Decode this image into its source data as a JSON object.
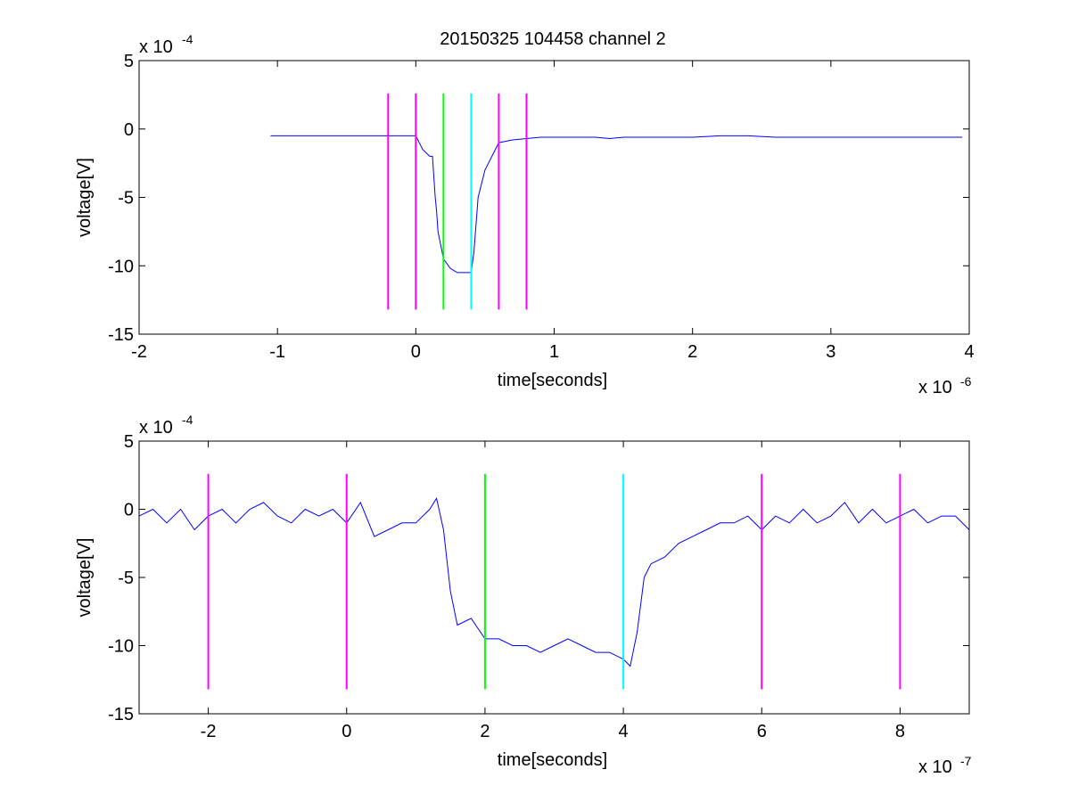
{
  "figure": {
    "title": "20150325 104458 channel 2"
  },
  "colors": {
    "signal": "#0000ff",
    "magenta": "#ff00ff",
    "green": "#00ff00",
    "cyan": "#00ffff",
    "axis": "#000000"
  },
  "chart_data": [
    {
      "type": "line",
      "title": "20150325 104458 channel 2",
      "xlabel": "time[seconds]",
      "ylabel": "voltage[V]",
      "x_exponent_label": "x 10",
      "x_exponent_power": "-6",
      "y_exponent_label": "x 10",
      "y_exponent_power": "-4",
      "xlim": [
        -2,
        4
      ],
      "ylim": [
        -15,
        5
      ],
      "xticks": [
        -2,
        -1,
        0,
        1,
        2,
        3,
        4
      ],
      "xtick_labels": [
        "-2",
        "-1",
        "0",
        "1",
        "2",
        "3",
        "4"
      ],
      "yticks": [
        5,
        0,
        -5,
        -10,
        -15
      ],
      "ytick_labels": [
        "5",
        "0",
        "-5",
        "-10",
        "-15"
      ],
      "grid": false,
      "series": [
        {
          "color": "#0000ff",
          "x": [
            -1.05,
            -0.9,
            -0.8,
            -0.7,
            -0.6,
            -0.5,
            -0.4,
            -0.3,
            -0.2,
            -0.1,
            0.0,
            0.05,
            0.1,
            0.12,
            0.14,
            0.15,
            0.16,
            0.18,
            0.2,
            0.25,
            0.3,
            0.35,
            0.4,
            0.42,
            0.45,
            0.5,
            0.55,
            0.6,
            0.7,
            0.8,
            0.9,
            1.0,
            1.1,
            1.2,
            1.3,
            1.4,
            1.5,
            1.6,
            1.8,
            2.0,
            2.2,
            2.4,
            2.6,
            2.8,
            3.0,
            3.2,
            3.4,
            3.6,
            3.8,
            3.95
          ],
          "y": [
            -0.5,
            -0.5,
            -0.5,
            -0.5,
            -0.5,
            -0.5,
            -0.5,
            -0.5,
            -0.5,
            -0.5,
            -0.5,
            -1.5,
            -2.0,
            -2.0,
            -5.0,
            -6.0,
            -7.5,
            -8.5,
            -9.5,
            -10.2,
            -10.5,
            -10.5,
            -10.5,
            -9.0,
            -5.0,
            -3.0,
            -2.0,
            -1.0,
            -0.8,
            -0.7,
            -0.6,
            -0.6,
            -0.6,
            -0.6,
            -0.6,
            -0.7,
            -0.6,
            -0.6,
            -0.6,
            -0.6,
            -0.5,
            -0.5,
            -0.6,
            -0.6,
            -0.6,
            -0.6,
            -0.6,
            -0.6,
            -0.6,
            -0.6
          ]
        }
      ],
      "vlines": [
        {
          "x": -0.2,
          "color": "#ff00ff"
        },
        {
          "x": 0.0,
          "color": "#ff00ff"
        },
        {
          "x": 0.2,
          "color": "#00ff00"
        },
        {
          "x": 0.4,
          "color": "#00ffff"
        },
        {
          "x": 0.6,
          "color": "#ff00ff"
        },
        {
          "x": 0.8,
          "color": "#ff00ff"
        }
      ],
      "vline_range": [
        -13.2,
        2.6
      ]
    },
    {
      "type": "line",
      "title": "",
      "xlabel": "time[seconds]",
      "ylabel": "voltage[V]",
      "x_exponent_label": "x 10",
      "x_exponent_power": "-7",
      "y_exponent_label": "x 10",
      "y_exponent_power": "-4",
      "xlim": [
        -3,
        9
      ],
      "ylim": [
        -15,
        5
      ],
      "xticks": [
        -2,
        0,
        2,
        4,
        6,
        8
      ],
      "xtick_labels": [
        "-2",
        "0",
        "2",
        "4",
        "6",
        "8"
      ],
      "yticks": [
        5,
        0,
        -5,
        -10,
        -15
      ],
      "ytick_labels": [
        "5",
        "0",
        "-5",
        "-10",
        "-15"
      ],
      "grid": false,
      "series": [
        {
          "color": "#0000ff",
          "x": [
            -3.0,
            -2.8,
            -2.6,
            -2.4,
            -2.2,
            -2.0,
            -1.8,
            -1.6,
            -1.4,
            -1.2,
            -1.0,
            -0.8,
            -0.6,
            -0.4,
            -0.2,
            0.0,
            0.2,
            0.4,
            0.6,
            0.8,
            1.0,
            1.2,
            1.3,
            1.4,
            1.5,
            1.6,
            1.8,
            2.0,
            2.2,
            2.4,
            2.6,
            2.8,
            3.0,
            3.2,
            3.4,
            3.6,
            3.8,
            4.0,
            4.1,
            4.2,
            4.3,
            4.4,
            4.6,
            4.8,
            5.0,
            5.2,
            5.4,
            5.6,
            5.8,
            6.0,
            6.2,
            6.4,
            6.6,
            6.8,
            7.0,
            7.2,
            7.4,
            7.6,
            7.8,
            8.0,
            8.2,
            8.4,
            8.6,
            8.8,
            9.0
          ],
          "y": [
            -0.5,
            0.0,
            -1.0,
            0.0,
            -1.5,
            -0.5,
            0.0,
            -1.0,
            0.0,
            0.5,
            -0.5,
            -1.0,
            0.0,
            -0.5,
            0.0,
            -1.0,
            0.5,
            -2.0,
            -1.5,
            -1.0,
            -1.0,
            0.0,
            0.8,
            -1.5,
            -6.0,
            -8.5,
            -8.0,
            -9.5,
            -9.5,
            -10.0,
            -10.0,
            -10.5,
            -10.0,
            -9.5,
            -10.0,
            -10.5,
            -10.5,
            -11.0,
            -11.5,
            -9.0,
            -5.0,
            -4.0,
            -3.5,
            -2.5,
            -2.0,
            -1.5,
            -1.0,
            -1.0,
            -0.5,
            -1.5,
            -0.5,
            -1.0,
            0.0,
            -1.0,
            -0.5,
            0.5,
            -1.0,
            0.0,
            -1.0,
            -0.5,
            0.0,
            -1.0,
            -0.5,
            -0.5,
            -1.5
          ]
        }
      ],
      "vlines": [
        {
          "x": -2.0,
          "color": "#ff00ff"
        },
        {
          "x": 0.0,
          "color": "#ff00ff"
        },
        {
          "x": 2.0,
          "color": "#00ff00"
        },
        {
          "x": 4.0,
          "color": "#00ffff"
        },
        {
          "x": 6.0,
          "color": "#ff00ff"
        },
        {
          "x": 8.0,
          "color": "#ff00ff"
        }
      ],
      "vline_range": [
        -13.2,
        2.6
      ]
    }
  ]
}
